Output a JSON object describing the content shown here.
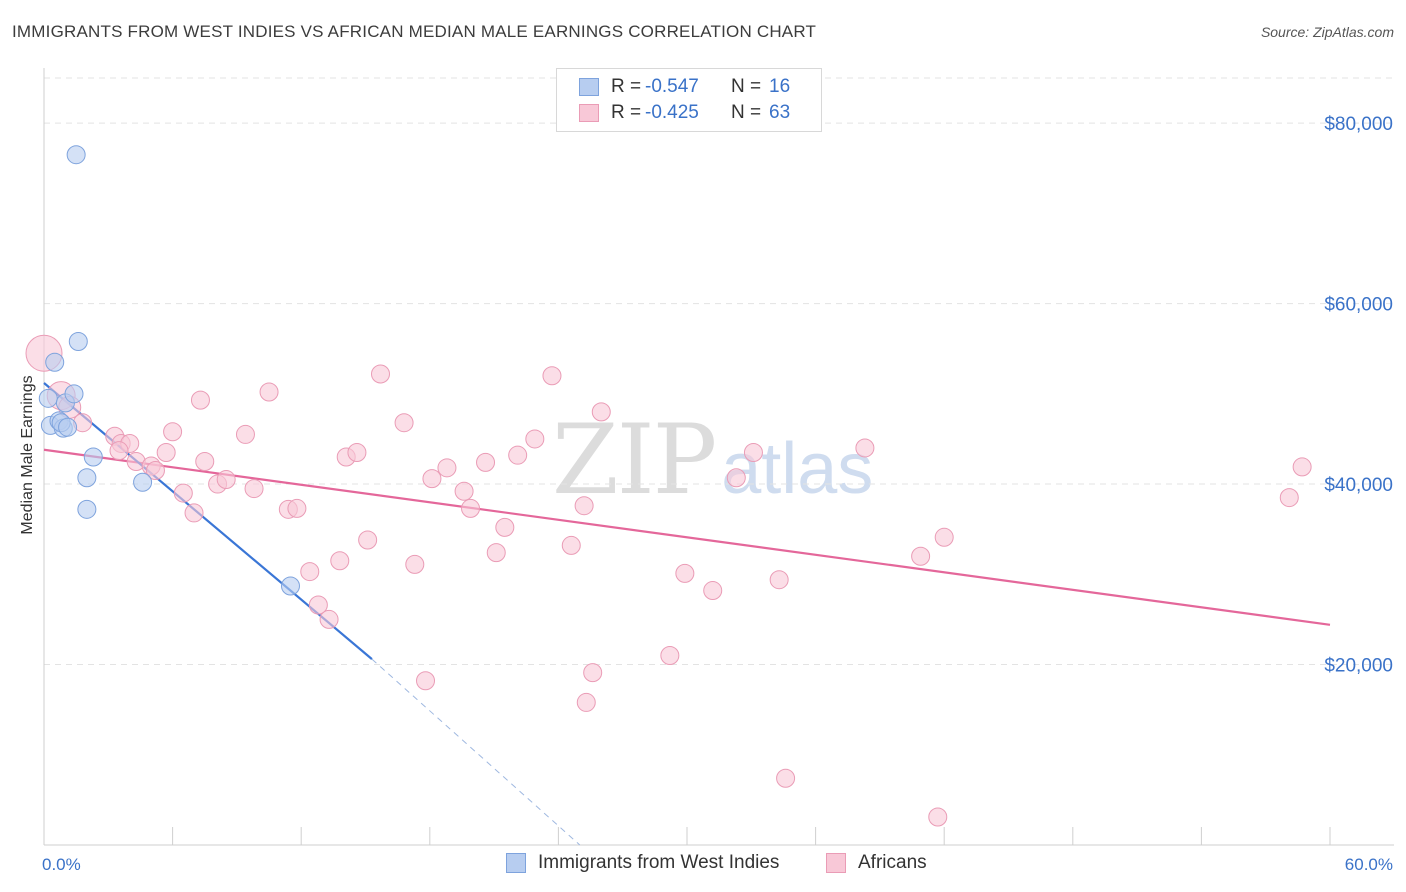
{
  "title": "IMMIGRANTS FROM WEST INDIES VS AFRICAN MEDIAN MALE EARNINGS CORRELATION CHART",
  "source": "Source: ZipAtlas.com",
  "watermark": {
    "zip": "ZIP",
    "atlas": "atlas"
  },
  "legend_top": [
    {
      "r_label": "R =",
      "r_value": "-0.547",
      "n_label": "N =",
      "n_value": "16"
    },
    {
      "r_label": "R =",
      "r_value": "-0.425",
      "n_label": "N =",
      "n_value": "63"
    }
  ],
  "legend_bottom": [
    "Immigrants from West Indies",
    "Africans"
  ],
  "colors": {
    "blue_fill": "#b7cdf0",
    "blue_stroke": "#7ea3dd",
    "blue_line": "#3a76d6",
    "pink_fill": "#f8c8d7",
    "pink_stroke": "#ea9cb6",
    "pink_line": "#e4679a",
    "axis_text": "#3a72c8",
    "grid": "#e3e3e3"
  },
  "chart_data": {
    "type": "scatter",
    "title": "IMMIGRANTS FROM WEST INDIES VS AFRICAN MEDIAN MALE EARNINGS CORRELATION CHART",
    "xlabel": "",
    "ylabel": "Median Male Earnings",
    "xlim": [
      0,
      60
    ],
    "ylim": [
      0,
      80000
    ],
    "x_tick_labels": [
      "0.0%",
      "60.0%"
    ],
    "y_ticks": [
      20000,
      40000,
      60000,
      80000
    ],
    "y_tick_labels": [
      "$20,000",
      "$40,000",
      "$60,000",
      "$80,000"
    ],
    "grid": true,
    "legend": "top-center",
    "series": [
      {
        "name": "Immigrants from West Indies",
        "color": "blue",
        "r": -0.547,
        "n": 16,
        "points": [
          [
            0.2,
            49500,
            9
          ],
          [
            0.3,
            46500,
            9
          ],
          [
            0.5,
            53500,
            9
          ],
          [
            0.7,
            47000,
            9
          ],
          [
            0.9,
            46200,
            9
          ],
          [
            1.0,
            49000,
            9
          ],
          [
            1.4,
            50000,
            9
          ],
          [
            1.5,
            76500,
            9
          ],
          [
            1.6,
            55800,
            9
          ],
          [
            2.0,
            40700,
            9
          ],
          [
            2.0,
            37200,
            9
          ],
          [
            2.3,
            43000,
            9
          ],
          [
            0.8,
            46800,
            9
          ],
          [
            4.6,
            40200,
            9
          ],
          [
            11.5,
            28700,
            9
          ],
          [
            1.1,
            46300,
            9
          ]
        ],
        "trend": {
          "x": [
            0.0,
            15.3
          ],
          "y": [
            51200,
            20600
          ]
        },
        "trend_extension": {
          "x": [
            15.3,
            25.0
          ],
          "y": [
            20600,
            0
          ]
        }
      },
      {
        "name": "Africans",
        "color": "pink",
        "r": -0.425,
        "n": 63,
        "points": [
          [
            0.0,
            54500,
            18
          ],
          [
            0.8,
            49800,
            14
          ],
          [
            1.2,
            48500,
            11
          ],
          [
            1.8,
            46800,
            9
          ],
          [
            3.3,
            45300,
            9
          ],
          [
            3.6,
            44500,
            9
          ],
          [
            4.0,
            44500,
            9
          ],
          [
            3.5,
            43700,
            9
          ],
          [
            4.3,
            42500,
            9
          ],
          [
            5.0,
            42000,
            9
          ],
          [
            5.2,
            41500,
            9
          ],
          [
            5.7,
            43500,
            9
          ],
          [
            6.0,
            45800,
            9
          ],
          [
            6.5,
            39000,
            9
          ],
          [
            7.0,
            36800,
            9
          ],
          [
            7.3,
            49300,
            9
          ],
          [
            7.5,
            42500,
            9
          ],
          [
            8.1,
            40000,
            9
          ],
          [
            8.5,
            40500,
            9
          ],
          [
            9.4,
            45500,
            9
          ],
          [
            9.8,
            39500,
            9
          ],
          [
            10.5,
            50200,
            9
          ],
          [
            11.4,
            37200,
            9
          ],
          [
            11.8,
            37300,
            9
          ],
          [
            12.4,
            30300,
            9
          ],
          [
            12.8,
            26600,
            9
          ],
          [
            13.3,
            25000,
            9
          ],
          [
            13.8,
            31500,
            9
          ],
          [
            14.1,
            43000,
            9
          ],
          [
            14.6,
            43500,
            9
          ],
          [
            15.1,
            33800,
            9
          ],
          [
            15.7,
            52200,
            9
          ],
          [
            16.8,
            46800,
            9
          ],
          [
            17.3,
            31100,
            9
          ],
          [
            17.8,
            18200,
            9
          ],
          [
            18.1,
            40600,
            9
          ],
          [
            18.8,
            41800,
            9
          ],
          [
            19.6,
            39200,
            9
          ],
          [
            19.9,
            37300,
            9
          ],
          [
            20.6,
            42400,
            9
          ],
          [
            21.1,
            32400,
            9
          ],
          [
            21.5,
            35200,
            9
          ],
          [
            22.1,
            43200,
            9
          ],
          [
            22.9,
            45000,
            9
          ],
          [
            23.7,
            52000,
            9
          ],
          [
            24.6,
            33200,
            9
          ],
          [
            25.2,
            37600,
            9
          ],
          [
            25.3,
            15800,
            9
          ],
          [
            25.6,
            19100,
            9
          ],
          [
            26.0,
            48000,
            9
          ],
          [
            29.2,
            21000,
            9
          ],
          [
            29.9,
            30100,
            9
          ],
          [
            31.2,
            28200,
            9
          ],
          [
            32.3,
            40700,
            9
          ],
          [
            33.1,
            43500,
            9
          ],
          [
            34.3,
            29400,
            9
          ],
          [
            34.6,
            7400,
            9
          ],
          [
            38.3,
            44000,
            9
          ],
          [
            40.9,
            32000,
            9
          ],
          [
            41.7,
            3100,
            9
          ],
          [
            42.0,
            34100,
            9
          ],
          [
            58.1,
            38500,
            9
          ],
          [
            58.7,
            41900,
            9
          ]
        ],
        "trend": {
          "x": [
            0.0,
            60.0
          ],
          "y": [
            43800,
            24400
          ]
        }
      }
    ]
  }
}
